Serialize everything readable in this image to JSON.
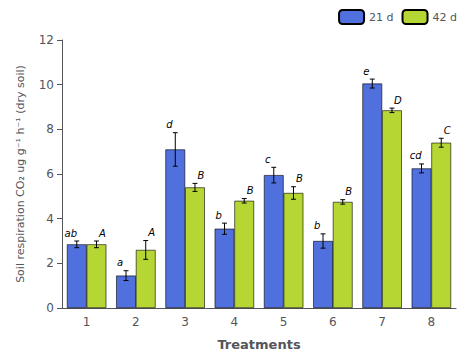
{
  "chart_data": {
    "type": "bar",
    "xlabel": "Treatments",
    "ylabel": "Soil respiration CO₂ ug g⁻¹ h⁻¹ (dry soil)",
    "categories": [
      "1",
      "2",
      "3",
      "4",
      "5",
      "6",
      "7",
      "8"
    ],
    "series": [
      {
        "name": "21 d",
        "values": [
          2.85,
          1.45,
          7.1,
          3.55,
          5.95,
          3.0,
          10.05,
          6.25
        ],
        "errors": [
          0.15,
          0.22,
          0.75,
          0.25,
          0.35,
          0.32,
          0.2,
          0.2
        ],
        "annotations": [
          "ab",
          "a",
          "d",
          "b",
          "c",
          "b",
          "e",
          "cd"
        ]
      },
      {
        "name": "42 d",
        "values": [
          2.85,
          2.6,
          5.4,
          4.8,
          5.15,
          4.75,
          8.85,
          7.4
        ],
        "errors": [
          0.15,
          0.42,
          0.18,
          0.1,
          0.28,
          0.1,
          0.1,
          0.2
        ],
        "annotations": [
          "A",
          "A",
          "B",
          "B",
          "B",
          "B",
          "D",
          "C"
        ]
      }
    ],
    "ylim": [
      0,
      12
    ],
    "yticks": [
      0,
      2,
      4,
      6,
      8,
      10,
      12
    ],
    "grid": false,
    "legend": "upper right"
  }
}
